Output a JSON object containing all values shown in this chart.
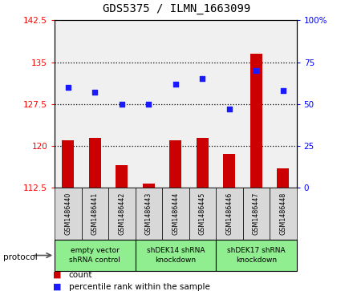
{
  "title": "GDS5375 / ILMN_1663099",
  "samples": [
    "GSM1486440",
    "GSM1486441",
    "GSM1486442",
    "GSM1486443",
    "GSM1486444",
    "GSM1486445",
    "GSM1486446",
    "GSM1486447",
    "GSM1486448"
  ],
  "counts": [
    121.0,
    121.5,
    116.5,
    113.2,
    121.0,
    121.5,
    118.5,
    136.5,
    116.0
  ],
  "percentiles": [
    60,
    57,
    50,
    50,
    62,
    65,
    47,
    70,
    58
  ],
  "ylim_left": [
    112.5,
    142.5
  ],
  "ylim_right": [
    0,
    100
  ],
  "yticks_left": [
    112.5,
    120.0,
    127.5,
    135.0,
    142.5
  ],
  "yticks_right": [
    0,
    25,
    50,
    75,
    100
  ],
  "ytick_labels_left": [
    "112.5",
    "120",
    "127.5",
    "135",
    "142.5"
  ],
  "ytick_labels_right": [
    "0",
    "25",
    "50",
    "75",
    "100%"
  ],
  "groups": [
    {
      "label": "empty vector\nshRNA control",
      "start": 0,
      "end": 3
    },
    {
      "label": "shDEK14 shRNA\nknockdown",
      "start": 3,
      "end": 6
    },
    {
      "label": "shDEK17 shRNA\nknockdown",
      "start": 6,
      "end": 9
    }
  ],
  "bar_color": "#cc0000",
  "scatter_color": "#1a1aff",
  "bar_width": 0.45,
  "protocol_label": "protocol",
  "legend_count": "count",
  "legend_percentile": "percentile rank within the sample",
  "bar_bottom": 112.5,
  "plot_bg": "#f0f0f0",
  "group_color": "#90EE90",
  "sample_box_color": "#d8d8d8",
  "grid_yticks": [
    120.0,
    127.5,
    135.0
  ]
}
